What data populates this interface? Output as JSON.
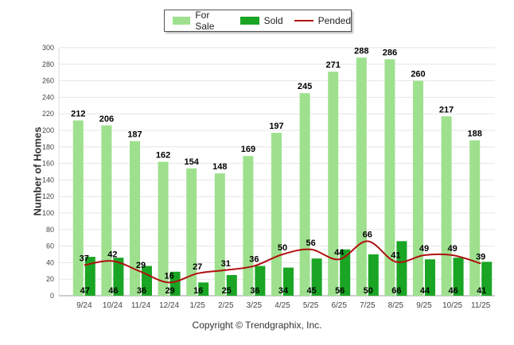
{
  "colors": {
    "for_sale": "#9ee08e",
    "sold": "#1aa524",
    "pended": "#b01010",
    "grid": "#e6e6e6"
  },
  "legend": {
    "for_sale": "For Sale",
    "sold": "Sold",
    "pended": "Pended"
  },
  "copyright": "Copyright © Trendgraphix, Inc.",
  "chart_data": {
    "type": "bar",
    "ylabel": "Number of Homes",
    "xlabel": "",
    "ylim": [
      0,
      300
    ],
    "yticks": [
      0,
      20,
      40,
      60,
      80,
      100,
      120,
      140,
      160,
      180,
      200,
      220,
      240,
      260,
      280,
      300
    ],
    "grid": true,
    "legend_position": "top-center",
    "categories": [
      "9/24",
      "10/24",
      "11/24",
      "12/24",
      "1/25",
      "2/25",
      "3/25",
      "4/25",
      "5/25",
      "6/25",
      "7/25",
      "8/25",
      "9/25",
      "10/25",
      "11/25"
    ],
    "series": [
      {
        "name": "For Sale",
        "type": "bar",
        "values": [
          212,
          206,
          187,
          162,
          154,
          148,
          169,
          197,
          245,
          271,
          288,
          286,
          260,
          217,
          188
        ]
      },
      {
        "name": "Sold",
        "type": "bar",
        "values": [
          47,
          46,
          36,
          29,
          16,
          25,
          36,
          34,
          45,
          56,
          50,
          66,
          44,
          46,
          41
        ]
      },
      {
        "name": "Pended",
        "type": "line",
        "values": [
          37,
          42,
          29,
          16,
          27,
          31,
          36,
          50,
          56,
          44,
          66,
          41,
          49,
          49,
          39
        ]
      }
    ]
  }
}
